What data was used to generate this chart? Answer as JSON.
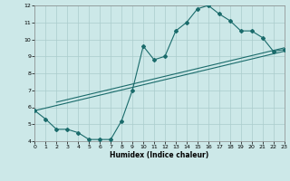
{
  "title": "",
  "xlabel": "Humidex (Indice chaleur)",
  "bg_color": "#cce8e8",
  "grid_color": "#aacccc",
  "line_color": "#1a6b6b",
  "xlim": [
    0,
    23
  ],
  "ylim": [
    4,
    12
  ],
  "xticks": [
    0,
    1,
    2,
    3,
    4,
    5,
    6,
    7,
    8,
    9,
    10,
    11,
    12,
    13,
    14,
    15,
    16,
    17,
    18,
    19,
    20,
    21,
    22,
    23
  ],
  "yticks": [
    4,
    5,
    6,
    7,
    8,
    9,
    10,
    11,
    12
  ],
  "curve1_x": [
    0,
    1,
    2,
    3,
    4,
    5,
    6,
    7,
    8,
    9,
    10,
    11,
    12,
    13,
    14,
    15,
    16,
    17,
    18,
    19,
    20,
    21,
    22,
    23
  ],
  "curve1_y": [
    5.8,
    5.3,
    4.7,
    4.7,
    4.5,
    4.1,
    4.1,
    4.1,
    5.2,
    7.0,
    9.6,
    8.8,
    9.0,
    10.5,
    11.0,
    11.8,
    12.0,
    11.5,
    11.1,
    10.5,
    10.5,
    10.1,
    9.3,
    9.4
  ],
  "line1_x": [
    0,
    23
  ],
  "line1_y": [
    5.8,
    9.3
  ],
  "line2_x": [
    2,
    23
  ],
  "line2_y": [
    6.3,
    9.5
  ]
}
